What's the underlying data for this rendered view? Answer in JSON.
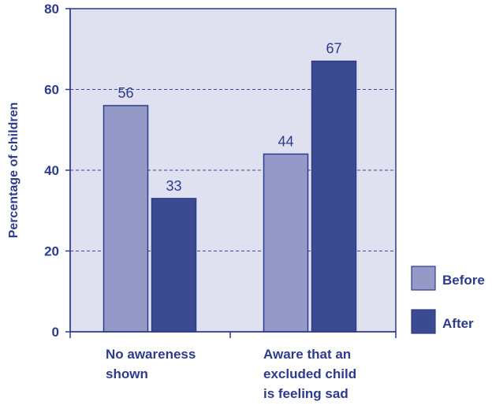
{
  "chart_data": {
    "type": "bar",
    "categories": [
      [
        "No awareness",
        "shown"
      ],
      [
        "Aware that an",
        "excluded child",
        "is feeling  sad"
      ]
    ],
    "series": [
      {
        "name": "Before",
        "values": [
          56,
          44
        ],
        "color": "#9499c8"
      },
      {
        "name": "After",
        "values": [
          33,
          67
        ],
        "color": "#3b4a91"
      }
    ],
    "ylabel": "Percentage of children",
    "xlabel": "",
    "ylim": [
      0,
      80
    ],
    "yticks": [
      0,
      20,
      40,
      60,
      80
    ],
    "grid": true,
    "legend_position": "bottom-right",
    "colors": {
      "text": "#2d3b8c",
      "plot_background": "#dfe1f1",
      "axis": "#2d3b8c",
      "gridline": "#3b4a91"
    }
  }
}
